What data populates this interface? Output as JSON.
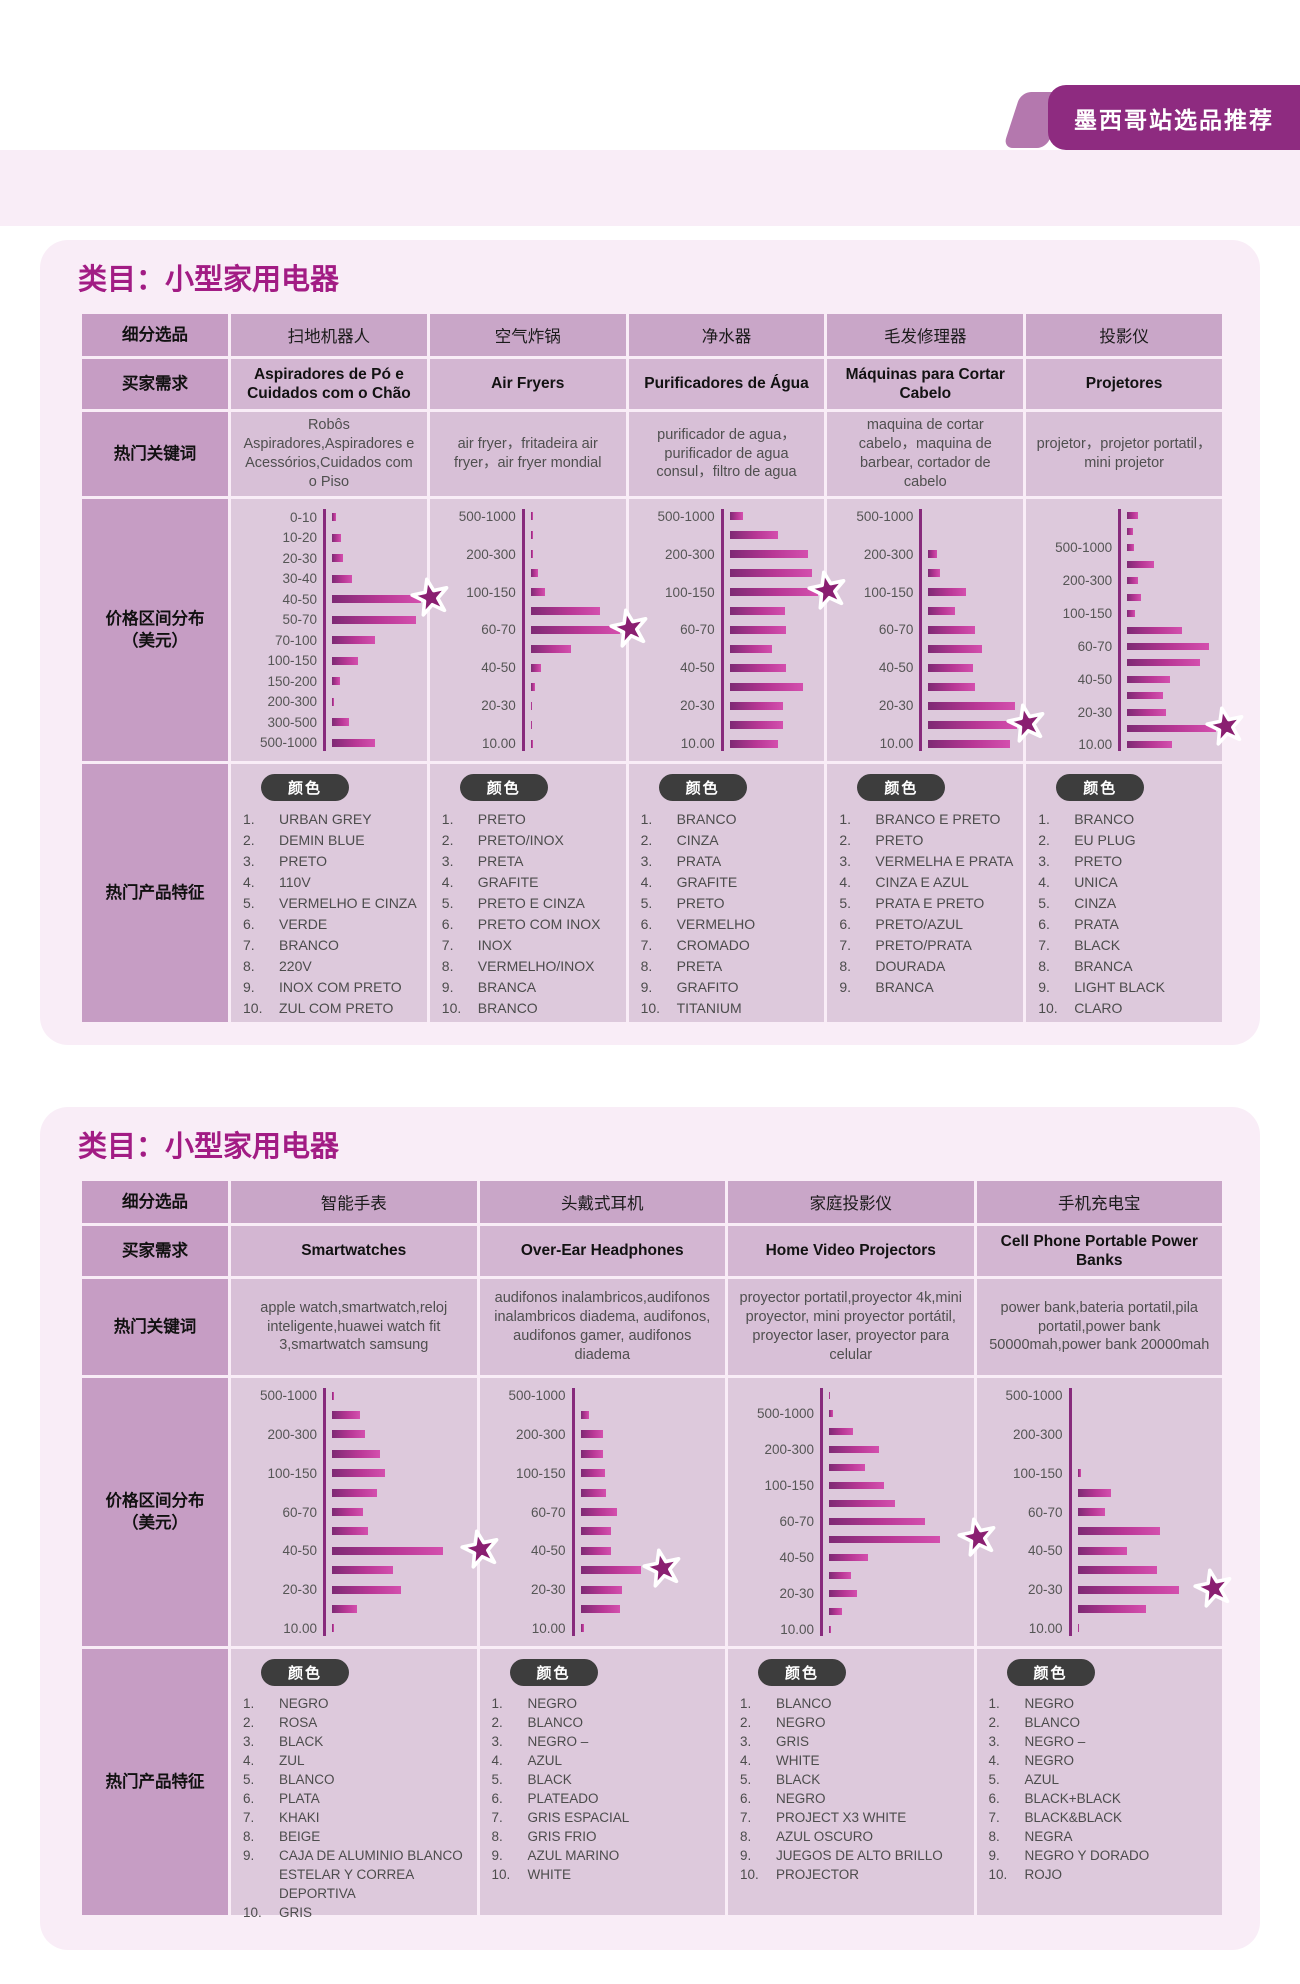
{
  "banner": {
    "label": "墨西哥站选品推荐"
  },
  "badge_label": "颜色",
  "colors": {
    "banner_bg": "#8e2b80",
    "banner_accent": "#b478ae",
    "card_bg": "#f9edf7",
    "title_text": "#a21c84",
    "row_label_bg": "#c69dc4",
    "header_bg": "#c9a6c8",
    "need_bg": "#d3b6d2",
    "keyword_bg": "#d8c0d7",
    "chart_bg": "#ddc9dc",
    "bar_gradient_start": "#7e2a74",
    "bar_gradient_end": "#d44fae",
    "axis": "#872a7c",
    "star_fill": "#8a1f71",
    "badge_bg": "#3d3d3d"
  },
  "row_labels": {
    "segment": "细分选品",
    "buyer_need": "买家需求",
    "keywords": "热门关键词",
    "price": "价格区间分布\n（美元）",
    "features": "热门产品特征"
  },
  "tables": [
    {
      "title": "类目：小型家用电器",
      "columns": [
        {
          "name": "扫地机器人",
          "buyer_need": "Aspiradores de Pó e Cuidados com o Chão",
          "keywords": "Robôs Aspiradores,Aspiradores e Acessórios,Cuidados com o Piso",
          "chart_index": 0,
          "features": [
            "URBAN GREY",
            "DEMIN BLUE",
            "PRETO",
            "110V",
            "VERMELHO E CINZA",
            "VERDE",
            "BRANCO",
            "220V",
            "INOX COM PRETO",
            "ZUL COM PRETO"
          ]
        },
        {
          "name": "空气炸锅",
          "buyer_need": "Air Fryers",
          "keywords": "air fryer，fritadeira air fryer，air fryer mondial",
          "chart_index": 1,
          "features": [
            "PRETO",
            "PRETO/INOX",
            "PRETA",
            "GRAFITE",
            "PRETO E CINZA",
            "PRETO COM INOX",
            "INOX",
            "VERMELHO/INOX",
            "BRANCA",
            "BRANCO"
          ]
        },
        {
          "name": "净水器",
          "buyer_need": "Purificadores de Água",
          "keywords": "purificador de agua，purificador de agua consul，filtro de agua",
          "chart_index": 2,
          "features": [
            "BRANCO",
            "CINZA",
            "PRATA",
            "GRAFITE",
            "PRETO",
            "VERMELHO",
            "CROMADO",
            "PRETA",
            "GRAFITO",
            "TITANIUM"
          ]
        },
        {
          "name": "毛发修理器",
          "buyer_need": "Máquinas para Cortar Cabelo",
          "keywords": "maquina de cortar cabelo，maquina de barbear, cortador de cabelo",
          "chart_index": 3,
          "features": [
            "BRANCO E PRETO",
            "PRETO",
            "VERMELHA E PRATA",
            "CINZA E AZUL",
            "PRATA E PRETO",
            "PRETO/AZUL",
            "PRETO/PRATA",
            "DOURADA",
            "BRANCA"
          ]
        },
        {
          "name": "投影仪",
          "buyer_need": "Projetores",
          "keywords": "projetor，projetor portatil，mini projetor",
          "chart_index": 4,
          "features": [
            "BRANCO",
            "EU PLUG",
            "PRETO",
            "UNICA",
            "CINZA",
            "PRATA",
            "BLACK",
            "BRANCA",
            "LIGHT BLACK",
            "CLARO"
          ]
        }
      ]
    },
    {
      "title": "类目：小型家用电器",
      "columns": [
        {
          "name": "智能手表",
          "buyer_need": "Smartwatches",
          "keywords": "apple watch,smartwatch,reloj inteligente,huawei watch fit 3,smartwatch samsung",
          "chart_index": 5,
          "features": [
            "NEGRO",
            "ROSA",
            "BLACK",
            "ZUL",
            "BLANCO",
            "PLATA",
            "KHAKI",
            "BEIGE",
            "CAJA DE ALUMINIO BLANCO ESTELAR Y CORREA DEPORTIVA",
            "GRIS"
          ]
        },
        {
          "name": "头戴式耳机",
          "buyer_need": "Over-Ear Headphones",
          "keywords": "audifonos inalambricos,audifonos inalambricos diadema, audifonos, audifonos gamer, audifonos diadema",
          "chart_index": 6,
          "features": [
            "NEGRO",
            "BLANCO",
            "NEGRO –",
            "AZUL",
            "BLACK",
            "PLATEADO",
            "GRIS ESPACIAL",
            "GRIS FRIO",
            "AZUL MARINO",
            "WHITE"
          ]
        },
        {
          "name": "家庭投影仪",
          "buyer_need": "Home Video Projectors",
          "keywords": "proyector portatil,proyector 4k,mini proyector, mini proyector portátil, proyector laser, proyector para celular",
          "chart_index": 7,
          "features": [
            "BLANCO",
            "NEGRO",
            "GRIS",
            "WHITE",
            "BLACK",
            "NEGRO",
            "PROJECT X3 WHITE",
            "AZUL OSCURO",
            "JUEGOS DE ALTO BRILLO",
            "PROJECTOR"
          ]
        },
        {
          "name": "手机充电宝",
          "buyer_need": "Cell Phone Portable Power Banks",
          "keywords": "power bank,bateria portatil,pila portatil,power bank 50000mah,power bank 20000mah",
          "chart_index": 8,
          "features": [
            "NEGRO",
            "BLANCO",
            "NEGRO –",
            "NEGRO",
            "AZUL",
            "BLACK+BLACK",
            "BLACK&BLACK",
            "NEGRA",
            "NEGRO Y DORADO",
            "ROJO"
          ]
        }
      ]
    }
  ],
  "chart_data": [
    {
      "type": "bar",
      "orientation": "horizontal",
      "title": "扫地机器人 价格区间分布（美元）",
      "value_unit": "relative_width_percent",
      "star_index": 4,
      "rows": [
        {
          "label": "0-10",
          "value": 5
        },
        {
          "label": "10-20",
          "value": 10
        },
        {
          "label": "20-30",
          "value": 12
        },
        {
          "label": "30-40",
          "value": 22
        },
        {
          "label": "40-50",
          "value": 100
        },
        {
          "label": "50-70",
          "value": 95
        },
        {
          "label": "70-100",
          "value": 48
        },
        {
          "label": "100-150",
          "value": 29
        },
        {
          "label": "150-200",
          "value": 9
        },
        {
          "label": "200-300",
          "value": 2
        },
        {
          "label": "300-500",
          "value": 19
        },
        {
          "label": "500-1000",
          "value": 48
        }
      ]
    },
    {
      "type": "bar",
      "orientation": "horizontal",
      "title": "空气炸锅 价格区间分布（美元）",
      "value_unit": "relative_width_percent",
      "star_index": 6,
      "rows": [
        {
          "label": "500-1000",
          "value": 2
        },
        {
          "label": "",
          "value": 3
        },
        {
          "label": "200-300",
          "value": 2
        },
        {
          "label": "",
          "value": 8
        },
        {
          "label": "100-150",
          "value": 16
        },
        {
          "label": "",
          "value": 78
        },
        {
          "label": "60-70",
          "value": 100
        },
        {
          "label": "",
          "value": 45
        },
        {
          "label": "40-50",
          "value": 12
        },
        {
          "label": "",
          "value": 5
        },
        {
          "label": "20-30",
          "value": 1
        },
        {
          "label": "",
          "value": 1
        },
        {
          "label": "10.00",
          "value": 3
        }
      ]
    },
    {
      "type": "bar",
      "orientation": "horizontal",
      "title": "净水器 价格区间分布（美元）",
      "value_unit": "relative_width_percent",
      "star_index": 4,
      "rows": [
        {
          "label": "500-1000",
          "value": 15
        },
        {
          "label": "",
          "value": 55
        },
        {
          "label": "200-300",
          "value": 88
        },
        {
          "label": "",
          "value": 93
        },
        {
          "label": "100-150",
          "value": 100
        },
        {
          "label": "",
          "value": 62
        },
        {
          "label": "60-70",
          "value": 63
        },
        {
          "label": "",
          "value": 48
        },
        {
          "label": "40-50",
          "value": 64
        },
        {
          "label": "",
          "value": 83
        },
        {
          "label": "20-30",
          "value": 60
        },
        {
          "label": "",
          "value": 60
        },
        {
          "label": "10.00",
          "value": 55
        }
      ]
    },
    {
      "type": "bar",
      "orientation": "horizontal",
      "title": "毛发修理器 价格区间分布（美元）",
      "value_unit": "relative_width_percent",
      "star_index": 11,
      "rows": [
        {
          "label": "500-1000",
          "value": 0
        },
        {
          "label": "",
          "value": 0
        },
        {
          "label": "200-300",
          "value": 10
        },
        {
          "label": "",
          "value": 13
        },
        {
          "label": "100-150",
          "value": 42
        },
        {
          "label": "",
          "value": 30
        },
        {
          "label": "60-70",
          "value": 52
        },
        {
          "label": "",
          "value": 60
        },
        {
          "label": "40-50",
          "value": 50
        },
        {
          "label": "",
          "value": 53
        },
        {
          "label": "20-30",
          "value": 97
        },
        {
          "label": "",
          "value": 100
        },
        {
          "label": "10.00",
          "value": 92
        }
      ]
    },
    {
      "type": "bar",
      "orientation": "horizontal",
      "title": "投影仪 价格区间分布（美元）",
      "value_unit": "relative_width_percent",
      "star_index": 13,
      "rows": [
        {
          "label": "",
          "value": 12
        },
        {
          "label": "",
          "value": 6
        },
        {
          "label": "500-1000",
          "value": 8
        },
        {
          "label": "",
          "value": 30
        },
        {
          "label": "200-300",
          "value": 12
        },
        {
          "label": "",
          "value": 15
        },
        {
          "label": "100-150",
          "value": 9
        },
        {
          "label": "",
          "value": 62
        },
        {
          "label": "60-70",
          "value": 92
        },
        {
          "label": "",
          "value": 82
        },
        {
          "label": "40-50",
          "value": 48
        },
        {
          "label": "",
          "value": 40
        },
        {
          "label": "20-30",
          "value": 44
        },
        {
          "label": "",
          "value": 100
        },
        {
          "label": "10.00",
          "value": 50
        }
      ]
    },
    {
      "type": "bar",
      "orientation": "horizontal",
      "title": "智能手表 价格区间分布（美元）",
      "value_unit": "relative_width_percent",
      "star_index": 8,
      "rows": [
        {
          "label": "500-1000",
          "value": 2
        },
        {
          "label": "",
          "value": 25
        },
        {
          "label": "200-300",
          "value": 30
        },
        {
          "label": "",
          "value": 43
        },
        {
          "label": "100-150",
          "value": 48
        },
        {
          "label": "",
          "value": 41
        },
        {
          "label": "60-70",
          "value": 28
        },
        {
          "label": "",
          "value": 33
        },
        {
          "label": "40-50",
          "value": 100
        },
        {
          "label": "",
          "value": 55
        },
        {
          "label": "20-30",
          "value": 62
        },
        {
          "label": "",
          "value": 23
        },
        {
          "label": "10.00",
          "value": 2
        }
      ]
    },
    {
      "type": "bar",
      "orientation": "horizontal",
      "title": "头戴式耳机 价格区间分布（美元）",
      "value_unit": "relative_width_percent",
      "star_index": 9,
      "rows": [
        {
          "label": "500-1000",
          "value": 0
        },
        {
          "label": "",
          "value": 8
        },
        {
          "label": "200-300",
          "value": 20
        },
        {
          "label": "",
          "value": 20
        },
        {
          "label": "100-150",
          "value": 22
        },
        {
          "label": "",
          "value": 23
        },
        {
          "label": "60-70",
          "value": 33
        },
        {
          "label": "",
          "value": 28
        },
        {
          "label": "40-50",
          "value": 28
        },
        {
          "label": "",
          "value": 55
        },
        {
          "label": "20-30",
          "value": 38
        },
        {
          "label": "",
          "value": 36
        },
        {
          "label": "10.00",
          "value": 3
        }
      ]
    },
    {
      "type": "bar",
      "orientation": "horizontal",
      "title": "家庭投影仪 价格区间分布（美元）",
      "value_unit": "relative_width_percent",
      "star_index": 8,
      "rows": [
        {
          "label": "",
          "value": 1
        },
        {
          "label": "500-1000",
          "value": 4
        },
        {
          "label": "",
          "value": 22
        },
        {
          "label": "200-300",
          "value": 45
        },
        {
          "label": "",
          "value": 33
        },
        {
          "label": "100-150",
          "value": 50
        },
        {
          "label": "",
          "value": 60
        },
        {
          "label": "60-70",
          "value": 87
        },
        {
          "label": "",
          "value": 100
        },
        {
          "label": "40-50",
          "value": 35
        },
        {
          "label": "",
          "value": 20
        },
        {
          "label": "20-30",
          "value": 25
        },
        {
          "label": "",
          "value": 12
        },
        {
          "label": "10.00",
          "value": 2
        }
      ]
    },
    {
      "type": "bar",
      "orientation": "horizontal",
      "title": "手机充电宝 价格区间分布（美元）",
      "value_unit": "relative_width_percent",
      "star_index": 10,
      "rows": [
        {
          "label": "500-1000",
          "value": 0
        },
        {
          "label": "",
          "value": 0
        },
        {
          "label": "200-300",
          "value": 0
        },
        {
          "label": "",
          "value": 0
        },
        {
          "label": "100-150",
          "value": 3
        },
        {
          "label": "",
          "value": 30
        },
        {
          "label": "60-70",
          "value": 25
        },
        {
          "label": "",
          "value": 75
        },
        {
          "label": "40-50",
          "value": 45
        },
        {
          "label": "",
          "value": 72
        },
        {
          "label": "20-30",
          "value": 92
        },
        {
          "label": "",
          "value": 62
        },
        {
          "label": "10.00",
          "value": 1
        }
      ]
    }
  ]
}
